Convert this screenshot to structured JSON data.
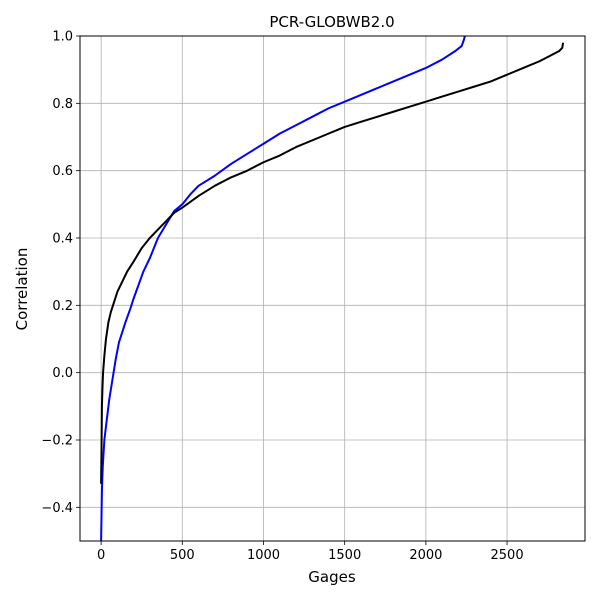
{
  "chart_data": {
    "type": "line",
    "title": "PCR-GLOBWB2.0",
    "xlabel": "Gages",
    "ylabel": "Correlation",
    "xlim": [
      -130,
      2980
    ],
    "ylim": [
      -0.5,
      1.0
    ],
    "x_ticks": [
      0,
      500,
      1000,
      1500,
      2000,
      2500
    ],
    "x_tick_labels": [
      "0",
      "500",
      "1000",
      "1500",
      "2000",
      "2500"
    ],
    "y_ticks": [
      -0.4,
      -0.2,
      0.0,
      0.2,
      0.4,
      0.6,
      0.8,
      1.0
    ],
    "y_tick_labels": [
      "−0.4",
      "−0.2",
      "0.0",
      "0.2",
      "0.4",
      "0.6",
      "0.8",
      "1.0"
    ],
    "grid": true,
    "series": [
      {
        "color": "#0000ff",
        "points": [
          [
            0,
            -0.5
          ],
          [
            5,
            -0.35
          ],
          [
            10,
            -0.28
          ],
          [
            20,
            -0.2
          ],
          [
            35,
            -0.14
          ],
          [
            50,
            -0.08
          ],
          [
            70,
            -0.02
          ],
          [
            90,
            0.04
          ],
          [
            110,
            0.09
          ],
          [
            130,
            0.12
          ],
          [
            150,
            0.15
          ],
          [
            180,
            0.19
          ],
          [
            200,
            0.22
          ],
          [
            230,
            0.26
          ],
          [
            260,
            0.3
          ],
          [
            300,
            0.34
          ],
          [
            350,
            0.4
          ],
          [
            400,
            0.44
          ],
          [
            450,
            0.48
          ],
          [
            500,
            0.5
          ],
          [
            550,
            0.53
          ],
          [
            600,
            0.555
          ],
          [
            700,
            0.585
          ],
          [
            800,
            0.62
          ],
          [
            900,
            0.65
          ],
          [
            1000,
            0.68
          ],
          [
            1100,
            0.71
          ],
          [
            1200,
            0.735
          ],
          [
            1300,
            0.76
          ],
          [
            1400,
            0.785
          ],
          [
            1500,
            0.805
          ],
          [
            1600,
            0.825
          ],
          [
            1700,
            0.845
          ],
          [
            1800,
            0.865
          ],
          [
            1900,
            0.885
          ],
          [
            2000,
            0.905
          ],
          [
            2100,
            0.93
          ],
          [
            2180,
            0.955
          ],
          [
            2220,
            0.97
          ],
          [
            2235,
            0.99
          ],
          [
            2240,
            1.0
          ]
        ]
      },
      {
        "color": "#000000",
        "points": [
          [
            0,
            -0.33
          ],
          [
            3,
            -0.2
          ],
          [
            5,
            -0.1
          ],
          [
            8,
            -0.05
          ],
          [
            12,
            0.0
          ],
          [
            20,
            0.05
          ],
          [
            30,
            0.1
          ],
          [
            45,
            0.15
          ],
          [
            60,
            0.18
          ],
          [
            80,
            0.21
          ],
          [
            100,
            0.24
          ],
          [
            130,
            0.27
          ],
          [
            160,
            0.3
          ],
          [
            200,
            0.33
          ],
          [
            250,
            0.37
          ],
          [
            300,
            0.4
          ],
          [
            350,
            0.425
          ],
          [
            400,
            0.45
          ],
          [
            450,
            0.475
          ],
          [
            500,
            0.49
          ],
          [
            600,
            0.525
          ],
          [
            700,
            0.555
          ],
          [
            800,
            0.58
          ],
          [
            900,
            0.6
          ],
          [
            1000,
            0.625
          ],
          [
            1100,
            0.645
          ],
          [
            1200,
            0.67
          ],
          [
            1300,
            0.69
          ],
          [
            1400,
            0.71
          ],
          [
            1500,
            0.73
          ],
          [
            1600,
            0.745
          ],
          [
            1700,
            0.76
          ],
          [
            1800,
            0.775
          ],
          [
            1900,
            0.79
          ],
          [
            2000,
            0.805
          ],
          [
            2100,
            0.82
          ],
          [
            2200,
            0.835
          ],
          [
            2300,
            0.85
          ],
          [
            2400,
            0.865
          ],
          [
            2500,
            0.885
          ],
          [
            2600,
            0.905
          ],
          [
            2700,
            0.925
          ],
          [
            2780,
            0.945
          ],
          [
            2820,
            0.955
          ],
          [
            2840,
            0.965
          ],
          [
            2845,
            0.98
          ]
        ]
      }
    ]
  }
}
